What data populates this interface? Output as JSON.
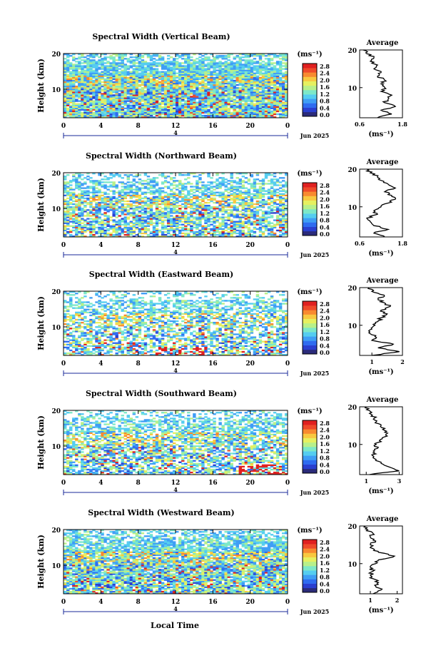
{
  "figure": {
    "xlabel_bottom": "Local Time",
    "date_label": "Jun 2025",
    "day_marker": "4",
    "colorbar_unit": "(ms⁻¹)",
    "average_unit": "(ms⁻¹)",
    "average_title": "Average",
    "ylabel": "Height (km)"
  },
  "colorbar": {
    "ticks": [
      "2.8",
      "2.4",
      "2.0",
      "1.6",
      "1.2",
      "0.8",
      "0.4",
      "0.0"
    ],
    "colors": [
      "#2b2b7a",
      "#2a3fd0",
      "#2f6cf0",
      "#3f9ef5",
      "#55cdf0",
      "#7de8c8",
      "#b8f08a",
      "#e6f060",
      "#f8c840",
      "#f88a30",
      "#ef4a2a",
      "#e02020"
    ]
  },
  "chart_data": [
    {
      "type": "heatmap",
      "title": "Spectral Width (Vertical Beam)",
      "x_ticks": [
        "0",
        "4",
        "8",
        "12",
        "16",
        "20",
        "0"
      ],
      "y_ticks": [
        "20",
        "10"
      ],
      "xlim": [
        0,
        24
      ],
      "ylim": [
        2,
        20
      ],
      "clim": [
        0.0,
        3.0
      ],
      "avg_profile": {
        "xlim": [
          0.6,
          1.8
        ],
        "x_ticks": [
          "0.6",
          "1.8"
        ],
        "height": [
          2,
          3,
          4,
          5,
          6,
          7,
          8,
          9,
          10,
          11,
          12,
          13,
          14,
          15,
          16,
          17,
          18,
          19,
          20
        ],
        "value": [
          1.1,
          1.5,
          1.2,
          1.6,
          1.3,
          1.4,
          1.5,
          1.2,
          1.3,
          1.2,
          1.3,
          1.1,
          1.2,
          1.0,
          1.1,
          0.9,
          1.0,
          0.8,
          0.7
        ]
      }
    },
    {
      "type": "heatmap",
      "title": "Spectral Width (Northward Beam)",
      "x_ticks": [
        "0",
        "4",
        "8",
        "12",
        "16",
        "20",
        "0"
      ],
      "y_ticks": [
        "20",
        "10"
      ],
      "xlim": [
        0,
        24
      ],
      "ylim": [
        2,
        20
      ],
      "clim": [
        0.0,
        3.0
      ],
      "avg_profile": {
        "xlim": [
          0.6,
          1.8
        ],
        "x_ticks": [
          "0.6",
          "1.8"
        ],
        "height": [
          2,
          3,
          4,
          5,
          6,
          7,
          8,
          9,
          10,
          11,
          12,
          13,
          14,
          15,
          16,
          17,
          18,
          19,
          20
        ],
        "value": [
          1.3,
          1.0,
          1.4,
          1.0,
          0.9,
          0.8,
          1.1,
          1.0,
          1.2,
          1.4,
          1.6,
          1.5,
          1.3,
          1.6,
          1.4,
          1.2,
          1.1,
          0.9,
          0.8
        ]
      }
    },
    {
      "type": "heatmap",
      "title": "Spectral Width (Eastward Beam)",
      "x_ticks": [
        "0",
        "4",
        "8",
        "12",
        "16",
        "20",
        "0"
      ],
      "y_ticks": [
        "20",
        "10"
      ],
      "xlim": [
        0,
        24
      ],
      "ylim": [
        2,
        20
      ],
      "clim": [
        0.0,
        3.0
      ],
      "avg_profile": {
        "xlim": [
          0.6,
          2.0
        ],
        "x_ticks": [
          "1",
          "2"
        ],
        "height": [
          2,
          3,
          4,
          5,
          6,
          7,
          8,
          9,
          10,
          11,
          12,
          13,
          14,
          15,
          16,
          17,
          18,
          19,
          20
        ],
        "value": [
          1.0,
          1.9,
          1.2,
          1.7,
          1.0,
          1.1,
          0.9,
          1.0,
          1.1,
          1.2,
          1.3,
          1.5,
          1.3,
          1.6,
          1.4,
          1.2,
          1.4,
          1.0,
          0.9
        ]
      }
    },
    {
      "type": "heatmap",
      "title": "Spectral Width (Southward Beam)",
      "x_ticks": [
        "0",
        "4",
        "8",
        "12",
        "16",
        "20",
        "0"
      ],
      "y_ticks": [
        "20",
        "10"
      ],
      "xlim": [
        0,
        24
      ],
      "ylim": [
        2,
        20
      ],
      "clim": [
        0.0,
        3.0
      ],
      "avg_profile": {
        "xlim": [
          0.6,
          3.2
        ],
        "x_ticks": [
          "1",
          "3"
        ],
        "height": [
          2,
          3,
          4,
          5,
          6,
          7,
          8,
          9,
          10,
          11,
          12,
          13,
          14,
          15,
          16,
          17,
          18,
          19,
          20
        ],
        "value": [
          1.2,
          3.0,
          2.4,
          1.9,
          1.6,
          1.4,
          1.5,
          1.7,
          1.6,
          1.8,
          2.1,
          2.3,
          2.0,
          1.9,
          1.6,
          1.5,
          1.3,
          1.2,
          1.0
        ]
      }
    },
    {
      "type": "heatmap",
      "title": "Spectral Width (Westward Beam)",
      "x_ticks": [
        "0",
        "4",
        "8",
        "12",
        "16",
        "20",
        "0"
      ],
      "y_ticks": [
        "20",
        "10"
      ],
      "xlim": [
        0,
        24
      ],
      "ylim": [
        2,
        20
      ],
      "clim": [
        0.0,
        3.0
      ],
      "avg_profile": {
        "xlim": [
          0.6,
          2.2
        ],
        "x_ticks": [
          "1",
          "2"
        ],
        "height": [
          2,
          3,
          4,
          5,
          6,
          7,
          8,
          9,
          10,
          11,
          12,
          13,
          14,
          15,
          16,
          17,
          18,
          19,
          20
        ],
        "value": [
          1.1,
          1.4,
          1.2,
          1.3,
          1.1,
          1.0,
          1.1,
          1.0,
          1.2,
          1.3,
          1.9,
          1.3,
          1.1,
          1.0,
          1.2,
          1.0,
          1.1,
          0.9,
          0.8
        ]
      }
    }
  ]
}
